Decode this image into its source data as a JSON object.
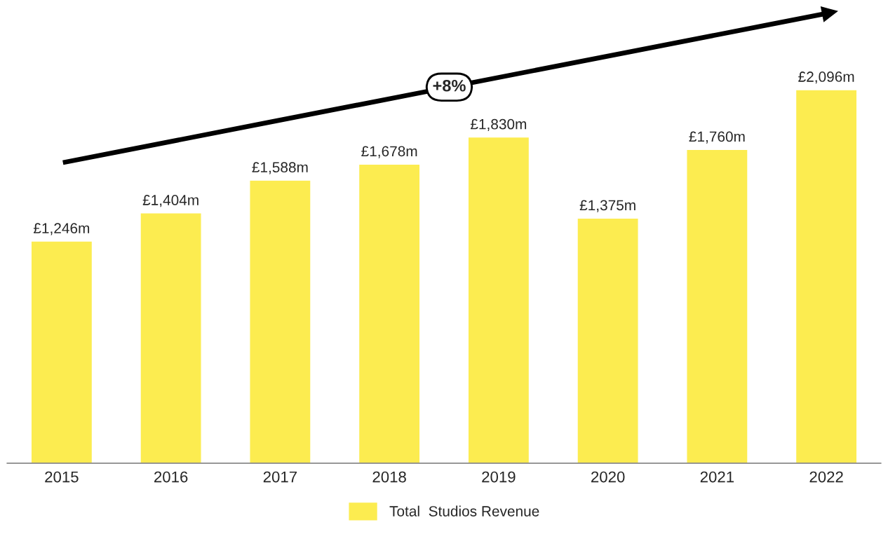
{
  "chart_data": {
    "type": "bar",
    "categories": [
      "2015",
      "2016",
      "2017",
      "2018",
      "2019",
      "2020",
      "2021",
      "2022"
    ],
    "series": [
      {
        "name": "Total  Studios Revenue",
        "color": "#fcec50",
        "values": [
          1246,
          1404,
          1588,
          1678,
          1830,
          1375,
          1760,
          2096
        ],
        "value_labels": [
          "£1,246m",
          "£1,404m",
          "£1,588m",
          "£1,678m",
          "£1,830m",
          "£1,375m",
          "£1,760m",
          "£2,096m"
        ]
      }
    ],
    "annotations": [
      "+8%"
    ],
    "legend": "bottom",
    "grid": false
  }
}
